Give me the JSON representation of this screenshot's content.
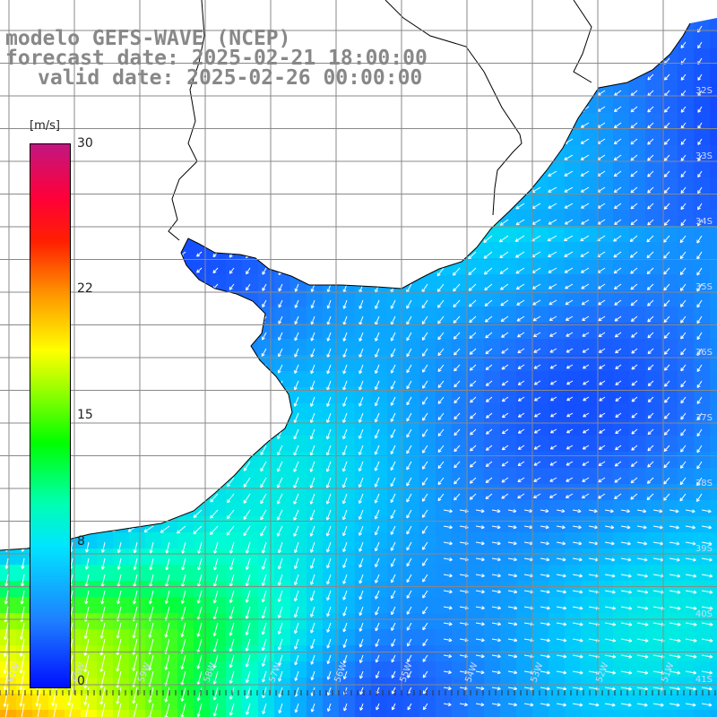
{
  "title": {
    "line1": "modelo GEFS-WAVE (NCEP)",
    "line2": "forecast date: 2025-02-21 18:00:00",
    "line3": "valid date: 2025-02-26 00:00:00"
  },
  "colorbar": {
    "unit": "[m/s]",
    "ticks": [
      "30",
      "22",
      "15",
      "8",
      "0"
    ],
    "tick_values": [
      30,
      22,
      15,
      8,
      0
    ],
    "range": [
      0,
      30
    ],
    "colors": [
      "#0010ff",
      "#1e7dff",
      "#00e5ff",
      "#00ff00",
      "#ffff00",
      "#ff9a00",
      "#ff2000",
      "#c21680"
    ]
  },
  "map": {
    "lat_labels": [
      "32S",
      "33S",
      "34S",
      "35S",
      "36S",
      "37S",
      "38S",
      "39S",
      "40S",
      "41S"
    ],
    "lon_labels": [
      "61W",
      "60W",
      "59W",
      "58W",
      "57W",
      "56W",
      "55W",
      "54W",
      "53W",
      "52W",
      "51W",
      "50W"
    ],
    "land_color": "#ffffff",
    "coast_color": "#000000",
    "grid_color": "#888888",
    "arrow_color": "#ffffff"
  }
}
